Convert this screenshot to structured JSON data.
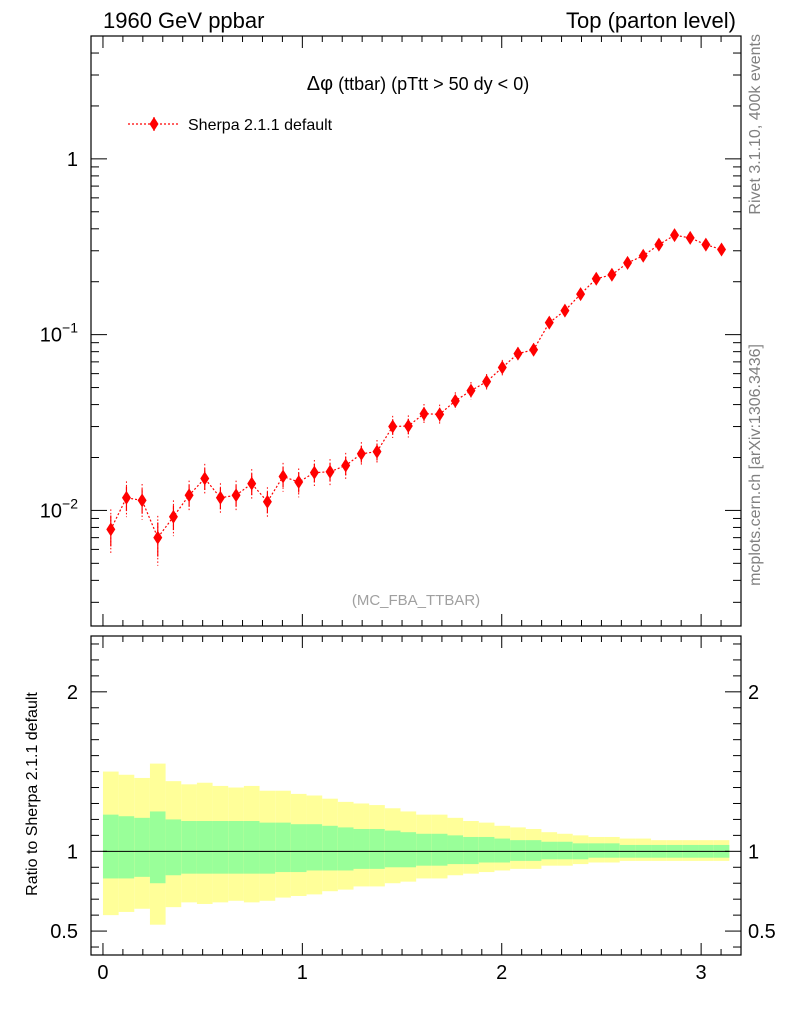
{
  "header": {
    "left": "1960 GeV ppbar",
    "right": "Top (parton level)"
  },
  "side": {
    "rivet": "Rivet 3.1.10,  400k events",
    "mcplots": "mcplots.cern.ch [arXiv:1306.3436]"
  },
  "chart_data": {
    "type": "scatter",
    "title_symbol": "Δφ",
    "title_text": " (ttbar) (pTtt > 50 dy < 0)",
    "analysis_label": "(MC_FBA_TTBAR)",
    "legend": {
      "placement": "top-left",
      "label": "Sherpa 2.1.1 default",
      "color": "#ff0000"
    },
    "main": {
      "yscale": "log",
      "ylim": [
        0.0022,
        5.0
      ],
      "yticks": [
        {
          "value": 1,
          "base": "1",
          "exp": ""
        },
        {
          "value": 0.1,
          "base": "10",
          "exp": "−1"
        },
        {
          "value": 0.01,
          "base": "10",
          "exp": "−2"
        }
      ]
    },
    "xlim": [
      -0.06,
      3.2
    ],
    "xticks": [
      "0",
      "1",
      "2",
      "3"
    ],
    "series": [
      {
        "name": "Sherpa 2.1.1 default",
        "color": "#ff0000",
        "x": [
          0.0393,
          0.1178,
          0.1963,
          0.2749,
          0.3534,
          0.432,
          0.5105,
          0.589,
          0.6676,
          0.7461,
          0.8247,
          0.9032,
          0.9817,
          1.0603,
          1.1388,
          1.2174,
          1.2959,
          1.3744,
          1.453,
          1.5315,
          1.6101,
          1.6886,
          1.7671,
          1.8457,
          1.9242,
          2.0028,
          2.0813,
          2.1598,
          2.2384,
          2.3169,
          2.3955,
          2.474,
          2.5525,
          2.6311,
          2.7096,
          2.7882,
          2.8667,
          2.9452,
          3.0238,
          3.1023
        ],
        "y": [
          0.0078,
          0.0118,
          0.0114,
          0.007,
          0.0092,
          0.0122,
          0.0152,
          0.0118,
          0.0122,
          0.0142,
          0.0112,
          0.0156,
          0.0145,
          0.0164,
          0.0166,
          0.018,
          0.021,
          0.0216,
          0.03,
          0.0302,
          0.0355,
          0.0352,
          0.042,
          0.048,
          0.054,
          0.065,
          0.078,
          0.082,
          0.117,
          0.137,
          0.17,
          0.208,
          0.219,
          0.256,
          0.281,
          0.325,
          0.368,
          0.355,
          0.325,
          0.305
        ],
        "yerr_rel": [
          0.2,
          0.16,
          0.16,
          0.22,
          0.16,
          0.14,
          0.14,
          0.14,
          0.14,
          0.14,
          0.14,
          0.13,
          0.13,
          0.12,
          0.12,
          0.12,
          0.11,
          0.11,
          0.1,
          0.1,
          0.09,
          0.09,
          0.08,
          0.08,
          0.07,
          0.07,
          0.06,
          0.06,
          0.05,
          0.05,
          0.05,
          0.04,
          0.04,
          0.04,
          0.04,
          0.04,
          0.04,
          0.04,
          0.04,
          0.04
        ]
      }
    ],
    "ratio": {
      "ylabel": "Ratio to Sherpa 2.1.1 default",
      "ylim": [
        0.35,
        2.35
      ],
      "yticks": [
        "0.5",
        "1",
        "2"
      ],
      "band_inner_color": "#99ff99",
      "band_outer_color": "#ffff99",
      "inner_low": [
        0.83,
        0.83,
        0.84,
        0.8,
        0.85,
        0.86,
        0.86,
        0.86,
        0.86,
        0.86,
        0.86,
        0.87,
        0.87,
        0.88,
        0.88,
        0.88,
        0.89,
        0.89,
        0.9,
        0.9,
        0.91,
        0.91,
        0.92,
        0.92,
        0.93,
        0.93,
        0.94,
        0.94,
        0.95,
        0.95,
        0.95,
        0.96,
        0.96,
        0.96,
        0.96,
        0.96,
        0.96,
        0.96,
        0.96,
        0.96
      ],
      "inner_high": [
        1.23,
        1.22,
        1.21,
        1.25,
        1.2,
        1.19,
        1.19,
        1.19,
        1.19,
        1.19,
        1.18,
        1.18,
        1.17,
        1.17,
        1.16,
        1.15,
        1.14,
        1.14,
        1.13,
        1.12,
        1.11,
        1.11,
        1.1,
        1.09,
        1.09,
        1.08,
        1.07,
        1.07,
        1.06,
        1.06,
        1.05,
        1.05,
        1.05,
        1.04,
        1.04,
        1.04,
        1.04,
        1.04,
        1.04,
        1.04
      ],
      "outer_low": [
        0.6,
        0.62,
        0.64,
        0.54,
        0.65,
        0.68,
        0.67,
        0.68,
        0.69,
        0.68,
        0.69,
        0.71,
        0.72,
        0.73,
        0.75,
        0.76,
        0.78,
        0.78,
        0.8,
        0.81,
        0.83,
        0.83,
        0.85,
        0.86,
        0.87,
        0.88,
        0.89,
        0.89,
        0.91,
        0.91,
        0.92,
        0.93,
        0.93,
        0.94,
        0.94,
        0.94,
        0.94,
        0.94,
        0.94,
        0.94
      ],
      "outer_high": [
        1.5,
        1.48,
        1.46,
        1.55,
        1.44,
        1.42,
        1.43,
        1.41,
        1.4,
        1.41,
        1.38,
        1.38,
        1.36,
        1.35,
        1.33,
        1.31,
        1.3,
        1.29,
        1.27,
        1.25,
        1.23,
        1.23,
        1.21,
        1.19,
        1.18,
        1.16,
        1.15,
        1.14,
        1.12,
        1.11,
        1.1,
        1.09,
        1.09,
        1.08,
        1.08,
        1.07,
        1.07,
        1.07,
        1.07,
        1.07
      ]
    }
  }
}
